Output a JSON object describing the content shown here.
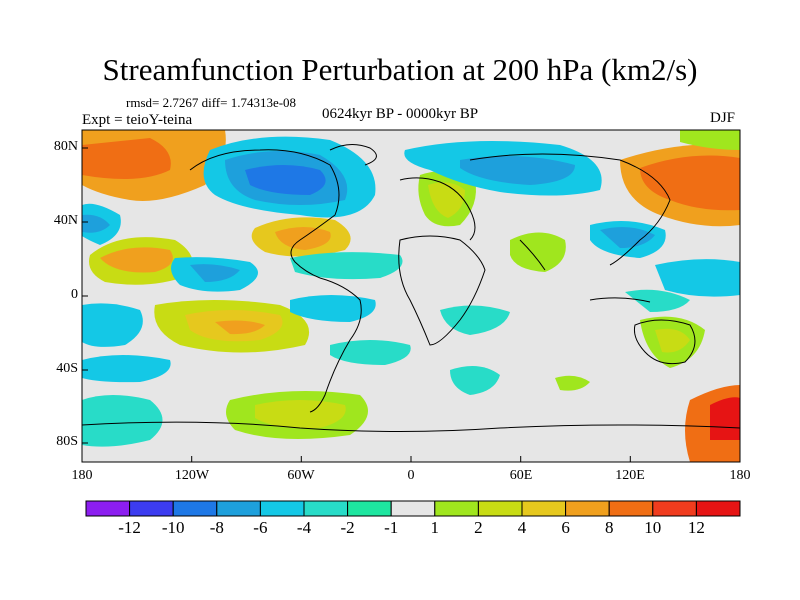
{
  "title": "Streamfunction Perturbation at 200 hPa (km2/s)",
  "stats": "rmsd= 2.7267 diff= 1.74313e-08",
  "experiment": "Expt = teioY-teina",
  "period": "0624kyr BP - 0000kyr BP",
  "season": "DJF",
  "lat_labels": [
    "80N",
    "40N",
    "0",
    "40S",
    "80S"
  ],
  "lon_labels": [
    "180",
    "120W",
    "60W",
    "0",
    "60E",
    "120E",
    "180"
  ],
  "colorbar": {
    "labels": [
      "-12",
      "-10",
      "-8",
      "-6",
      "-4",
      "-2",
      "-1",
      "1",
      "2",
      "4",
      "6",
      "8",
      "10",
      "12"
    ],
    "colors": [
      "#8c1ef0",
      "#3c3cf0",
      "#1e78e6",
      "#1ea0dc",
      "#14c8e6",
      "#28dcc8",
      "#1ee6a0",
      "#e6e6e6",
      "#a0e61e",
      "#c8dc14",
      "#e6c81e",
      "#f0a01e",
      "#f06e14",
      "#f03c1e",
      "#e61414"
    ]
  },
  "map_colors": {
    "background": "#e6e6e6",
    "land_outline": "#000000"
  }
}
